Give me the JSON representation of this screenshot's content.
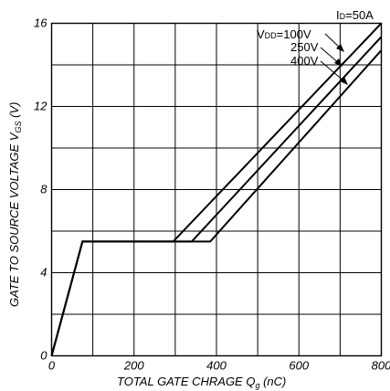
{
  "chart_data": {
    "type": "line",
    "xlabel_main": "TOTAL GATE CHRAGE  Q",
    "xlabel_sub": "g",
    "xlabel_unit": " (nC)",
    "ylabel_main": "GATE TO SOURCE VOLTAGE  V",
    "ylabel_sub": "GS",
    "ylabel_unit": " (V)",
    "xlim": [
      0,
      800
    ],
    "ylim": [
      0,
      16
    ],
    "x_ticks": [
      "0",
      "200",
      "400",
      "600",
      "800"
    ],
    "y_ticks": [
      "0",
      "4",
      "8",
      "12",
      "16"
    ],
    "grid": true,
    "condition": {
      "prefix": "I",
      "sub": "D",
      "suffix": "=50A"
    },
    "series_label_prefix": {
      "main": "V",
      "sub": "DD",
      "suffix": "="
    },
    "series": [
      {
        "name": "100V",
        "points": [
          [
            0,
            0
          ],
          [
            75,
            5.5
          ],
          [
            295,
            5.5
          ],
          [
            800,
            16
          ]
        ]
      },
      {
        "name": "250V",
        "points": [
          [
            0,
            0
          ],
          [
            75,
            5.5
          ],
          [
            340,
            5.5
          ],
          [
            800,
            15.35
          ]
        ]
      },
      {
        "name": "400V",
        "points": [
          [
            0,
            0
          ],
          [
            75,
            5.5
          ],
          [
            385,
            5.5
          ],
          [
            800,
            14.7
          ]
        ]
      }
    ]
  }
}
